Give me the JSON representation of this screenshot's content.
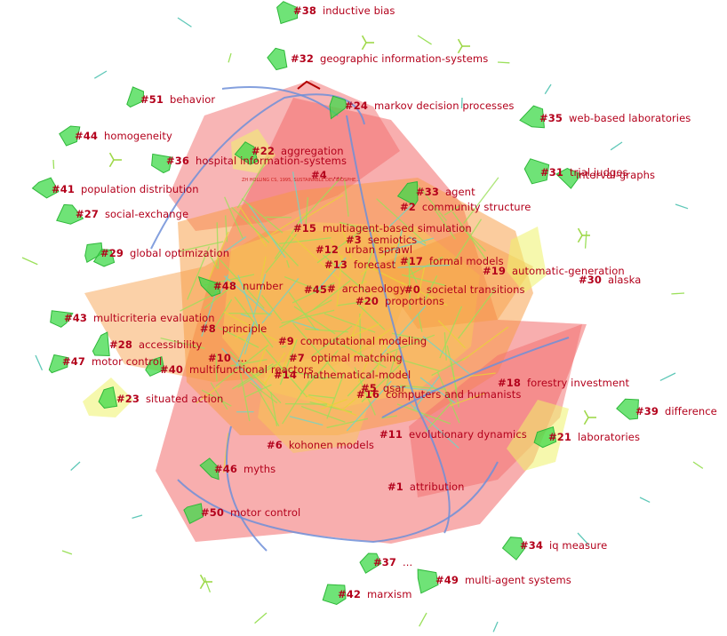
{
  "colors": {
    "label": "#b3001b",
    "outer_hull": "#f26b6b",
    "mid_hull": "#f79a3e",
    "inner_hull": "#f7c85a",
    "yellow_hull": "#eef26a",
    "green_cluster": "#3fd94a",
    "link_blue": "#6f8fd8",
    "link_green": "#9be05a",
    "link_yellow": "#e8d23a",
    "background": "#ffffff"
  },
  "small_caption": "ZH HOLLING CS, 1995, SUSTAINABLE DEV BIOSPHE...",
  "clusters": [
    {
      "num": "#38",
      "label": "inductive bias"
    },
    {
      "num": "#32",
      "label": "geographic information-systems"
    },
    {
      "num": "#51",
      "label": "behavior"
    },
    {
      "num": "#24",
      "label": "markov decision processes"
    },
    {
      "num": "#35",
      "label": "web-based laboratories"
    },
    {
      "num": "#44",
      "label": "homogeneity"
    },
    {
      "num": "#22",
      "label": "aggregation"
    },
    {
      "num": "#36",
      "label": "hospital information-systems"
    },
    {
      "num": "#4",
      "label": "..."
    },
    {
      "num": "#31",
      "label": "trial judges"
    },
    {
      "num": "",
      "label": "interval-graphs"
    },
    {
      "num": "#41",
      "label": "population distribution"
    },
    {
      "num": "#33",
      "label": "agent"
    },
    {
      "num": "#2",
      "label": "community structure"
    },
    {
      "num": "#27",
      "label": "social-exchange"
    },
    {
      "num": "#15",
      "label": "multiagent-based simulation"
    },
    {
      "num": "#3",
      "label": "semiotics"
    },
    {
      "num": "#12",
      "label": "urban sprawl"
    },
    {
      "num": "#29",
      "label": "global optimization"
    },
    {
      "num": "#13",
      "label": "forecast"
    },
    {
      "num": "#17",
      "label": "formal models"
    },
    {
      "num": "#19",
      "label": "automatic-generation"
    },
    {
      "num": "#30",
      "label": "alaska"
    },
    {
      "num": "#48",
      "label": "number"
    },
    {
      "num": "#45",
      "label": ""
    },
    {
      "num": "#",
      "label": "archaeology"
    },
    {
      "num": "#0",
      "label": "societal transitions"
    },
    {
      "num": "#20",
      "label": "proportions"
    },
    {
      "num": "#43",
      "label": "multicriteria evaluation"
    },
    {
      "num": "#8",
      "label": "principle"
    },
    {
      "num": "#9",
      "label": "computational modeling"
    },
    {
      "num": "#28",
      "label": "accessibility"
    },
    {
      "num": "#10",
      "label": "..."
    },
    {
      "num": "#7",
      "label": "optimal matching"
    },
    {
      "num": "#47",
      "label": "motor control"
    },
    {
      "num": "#40",
      "label": "multifunctional reactors"
    },
    {
      "num": "#14",
      "label": "mathematical-model"
    },
    {
      "num": "#18",
      "label": "forestry investment"
    },
    {
      "num": "#5",
      "label": "qsar"
    },
    {
      "num": "#16",
      "label": "computers and humanists"
    },
    {
      "num": "#23",
      "label": "situated action"
    },
    {
      "num": "#39",
      "label": "difference"
    },
    {
      "num": "#11",
      "label": "evolutionary dynamics"
    },
    {
      "num": "#21",
      "label": "laboratories"
    },
    {
      "num": "#6",
      "label": "kohonen models"
    },
    {
      "num": "#46",
      "label": "myths"
    },
    {
      "num": "#1",
      "label": "attribution"
    },
    {
      "num": "#50",
      "label": "motor control"
    },
    {
      "num": "#34",
      "label": "iq measure"
    },
    {
      "num": "#37",
      "label": "..."
    },
    {
      "num": "#49",
      "label": "multi-agent systems"
    },
    {
      "num": "#42",
      "label": "marxism"
    }
  ]
}
